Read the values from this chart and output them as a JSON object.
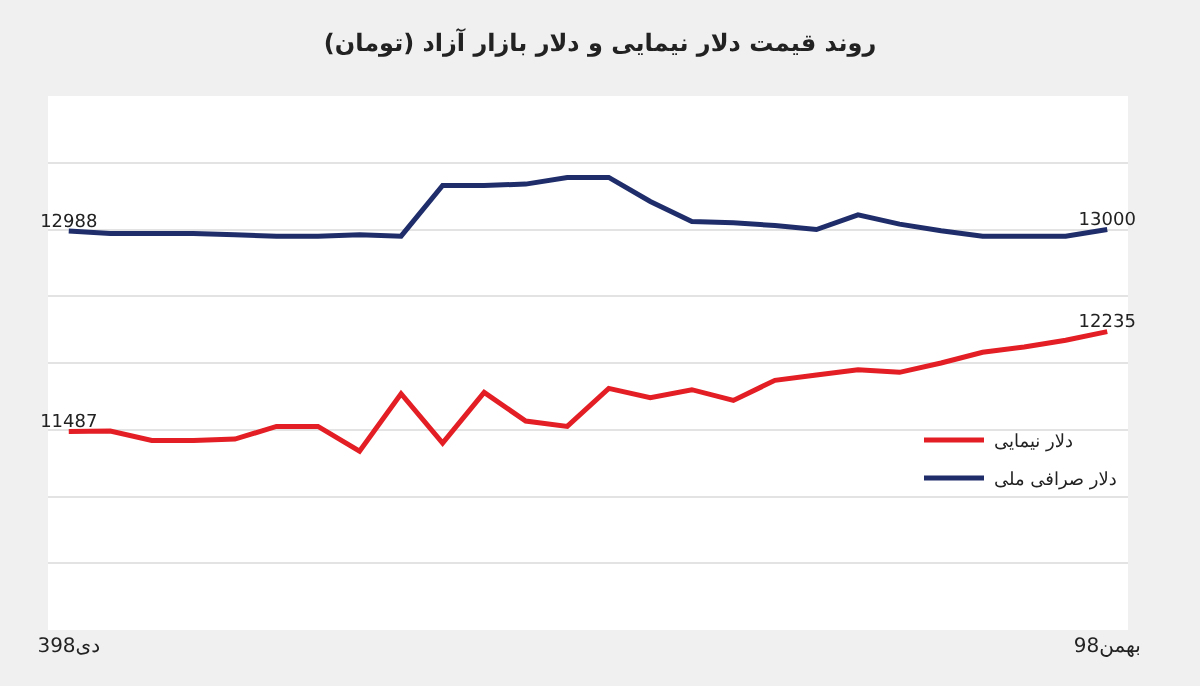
{
  "chart_data": {
    "type": "line",
    "title": "روند قیمت دلار نیمایی و دلار بازار آزاد (تومان)",
    "categories": [
      "3دی98",
      null,
      null,
      null,
      null,
      null,
      null,
      null,
      null,
      null,
      null,
      null,
      null,
      null,
      null,
      null,
      null,
      null,
      null,
      null,
      null,
      null,
      null,
      null,
      null,
      "بهمن98"
    ],
    "series": [
      {
        "name": "دلار نیمایی",
        "color": "#e31e24",
        "values": [
          11487,
          11490,
          11420,
          11420,
          11430,
          11525,
          11525,
          11340,
          11770,
          11400,
          11780,
          11565,
          11525,
          11810,
          11740,
          11800,
          11720,
          11870,
          11910,
          11950,
          11930,
          12000,
          12080,
          12120,
          12170,
          12235
        ],
        "value_labels": [
          "11487",
          null,
          null,
          null,
          null,
          null,
          null,
          null,
          null,
          null,
          null,
          null,
          null,
          null,
          null,
          null,
          null,
          null,
          null,
          null,
          null,
          null,
          null,
          null,
          null,
          "12235"
        ]
      },
      {
        "name": "دلار صرافی ملی",
        "color": "#1f2d6b",
        "values": [
          12988,
          12970,
          12970,
          12970,
          12960,
          12950,
          12950,
          12960,
          12950,
          13330,
          13330,
          13340,
          13390,
          13390,
          13210,
          13060,
          13050,
          13030,
          13000,
          13110,
          13040,
          12990,
          12950,
          12950,
          12950,
          13000
        ],
        "value_labels": [
          "12988",
          null,
          null,
          null,
          null,
          null,
          null,
          null,
          null,
          null,
          null,
          null,
          null,
          null,
          null,
          null,
          null,
          null,
          null,
          null,
          null,
          null,
          null,
          null,
          null,
          "13000"
        ]
      }
    ],
    "ylim": [
      10000,
      14000
    ],
    "yticks": [
      {
        "value": 10000,
        "label": null
      },
      {
        "value": 10500,
        "label": null
      },
      {
        "value": 11000,
        "label": null
      },
      {
        "value": 11500,
        "label": null
      },
      {
        "value": 12000,
        "label": null
      },
      {
        "value": 12500,
        "label": null
      },
      {
        "value": 13000,
        "label": null
      },
      {
        "value": 13500,
        "label": null
      },
      {
        "value": 14000,
        "label": null
      }
    ],
    "tick_labels": "x",
    "grid": "y",
    "legend": "bottom right",
    "marker": "none",
    "line_style": "solid"
  }
}
